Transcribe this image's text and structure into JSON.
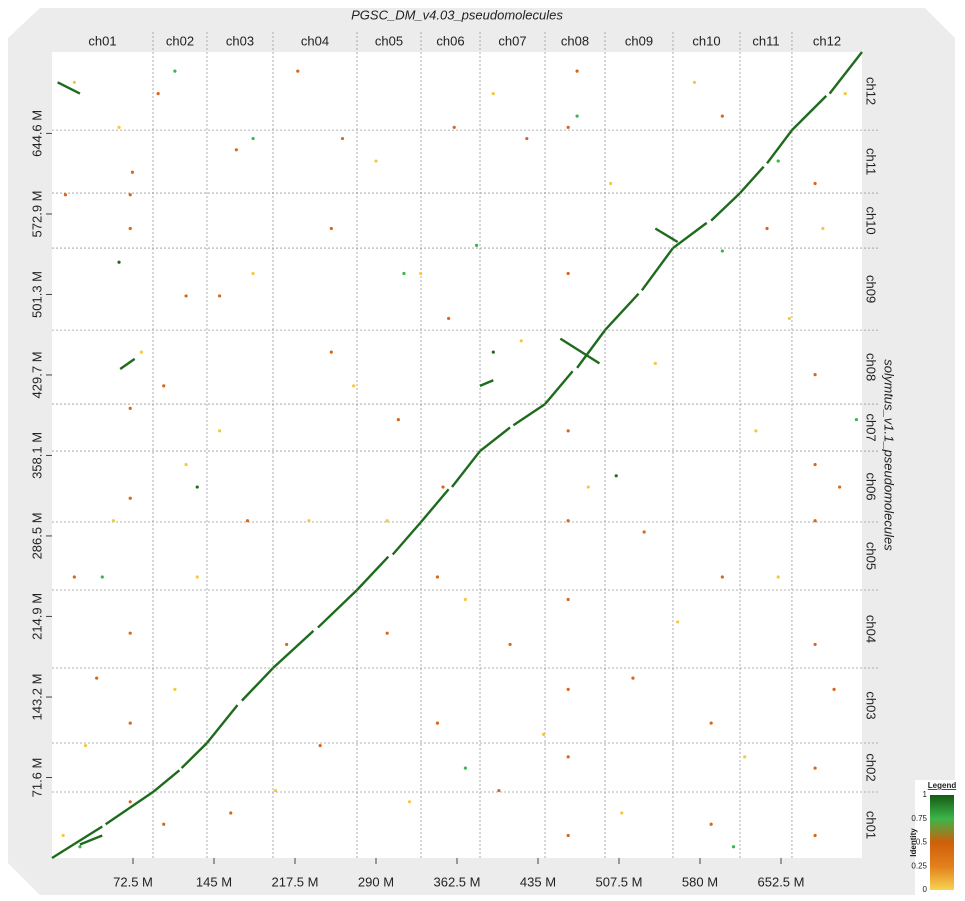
{
  "chart_data": {
    "type": "dotplot",
    "title": "PGSC_DM_v4.03_pseudomolecules",
    "y_title": "solymtus_v1.1_pseudomolecules",
    "xlim": [
      0,
      725
    ],
    "ylim": [
      0,
      717
    ],
    "xticks": [
      {
        "value": 72.5,
        "label": "72.5 M"
      },
      {
        "value": 145,
        "label": "145 M"
      },
      {
        "value": 217.5,
        "label": "217.5 M"
      },
      {
        "value": 290,
        "label": "290 M"
      },
      {
        "value": 362.5,
        "label": "362.5 M"
      },
      {
        "value": 435,
        "label": "435 M"
      },
      {
        "value": 507.5,
        "label": "507.5 M"
      },
      {
        "value": 580,
        "label": "580 M"
      },
      {
        "value": 652.5,
        "label": "652.5 M"
      }
    ],
    "yticks": [
      {
        "value": 71.6,
        "label": "71.6 M"
      },
      {
        "value": 143.2,
        "label": "143.2 M"
      },
      {
        "value": 214.9,
        "label": "214.9 M"
      },
      {
        "value": 286.5,
        "label": "286.5 M"
      },
      {
        "value": 358.1,
        "label": "358.1 M"
      },
      {
        "value": 429.7,
        "label": "429.7 M"
      },
      {
        "value": 501.3,
        "label": "501.3 M"
      },
      {
        "value": 572.9,
        "label": "572.9 M"
      },
      {
        "value": 644.6,
        "label": "644.6 M"
      }
    ],
    "x_chromosomes": [
      {
        "name": "ch01",
        "start": 0,
        "end": 90.4
      },
      {
        "name": "ch02",
        "start": 90.4,
        "end": 138.7
      },
      {
        "name": "ch03",
        "start": 138.7,
        "end": 197.8
      },
      {
        "name": "ch04",
        "start": 197.8,
        "end": 273
      },
      {
        "name": "ch05",
        "start": 273,
        "end": 330.3
      },
      {
        "name": "ch06",
        "start": 330.3,
        "end": 383.1
      },
      {
        "name": "ch07",
        "start": 383.1,
        "end": 441.3
      },
      {
        "name": "ch08",
        "start": 441.3,
        "end": 495
      },
      {
        "name": "ch09",
        "start": 495,
        "end": 555.8
      },
      {
        "name": "ch10",
        "start": 555.8,
        "end": 615.8
      },
      {
        "name": "ch11",
        "start": 615.8,
        "end": 662.3
      },
      {
        "name": "ch12",
        "start": 662.3,
        "end": 725
      }
    ],
    "y_chromosomes": [
      {
        "name": "ch01",
        "start": 0,
        "end": 58.7
      },
      {
        "name": "ch02",
        "start": 58.7,
        "end": 102.3
      },
      {
        "name": "ch03",
        "start": 102.3,
        "end": 169
      },
      {
        "name": "ch04",
        "start": 169,
        "end": 238.4
      },
      {
        "name": "ch05",
        "start": 238.4,
        "end": 298.9
      },
      {
        "name": "ch06",
        "start": 298.9,
        "end": 362
      },
      {
        "name": "ch07",
        "start": 362,
        "end": 403.8
      },
      {
        "name": "ch08",
        "start": 403.8,
        "end": 469.6
      },
      {
        "name": "ch09",
        "start": 469.6,
        "end": 542.6
      },
      {
        "name": "ch10",
        "start": 542.6,
        "end": 591.5
      },
      {
        "name": "ch11",
        "start": 591.5,
        "end": 647.5
      },
      {
        "name": "ch12",
        "start": 647.5,
        "end": 717
      }
    ],
    "segments": {
      "color": "#1e6b1e",
      "x1": [
        0,
        48,
        90.4,
        116,
        138.7,
        170,
        197.8,
        238,
        273,
        305,
        330.3,
        358,
        383.1,
        413,
        441.3,
        470,
        495,
        528,
        555.8,
        590,
        615.8,
        640,
        662.3,
        696,
        5,
        61,
        455,
        383,
        540,
        25
      ],
      "x2": [
        45,
        90.4,
        114,
        138.7,
        166,
        197.8,
        234,
        273,
        301,
        330.3,
        355,
        383.1,
        410,
        441.3,
        466,
        495,
        525,
        555.8,
        586,
        615.8,
        637,
        662.3,
        693,
        725,
        25,
        74,
        490,
        395,
        560,
        45
      ],
      "y1": [
        0,
        30,
        58.7,
        80,
        102.3,
        140,
        169,
        205,
        238.4,
        270,
        298.9,
        330,
        362,
        385,
        403.8,
        436,
        469.6,
        505,
        542.6,
        567,
        591.5,
        618,
        647.5,
        680,
        690,
        435,
        462,
        420,
        560,
        12
      ],
      "y2": [
        28,
        58.7,
        78,
        102.3,
        136,
        169,
        202,
        238.4,
        268,
        298.9,
        328,
        362,
        383,
        403.8,
        433,
        469.6,
        502,
        542.6,
        565,
        591.5,
        615,
        647.5,
        678,
        717,
        680,
        444,
        440,
        425,
        548,
        20
      ]
    },
    "series": [
      {
        "color": "#d9661a",
        "x": [
          70,
          70,
          70,
          70,
          70,
          70,
          70,
          72,
          12,
          20,
          40,
          100,
          100,
          120,
          160,
          165,
          175,
          210,
          240,
          250,
          260,
          300,
          310,
          345,
          345,
          350,
          355,
          360,
          400,
          410,
          425,
          462,
          462,
          462,
          462,
          462,
          462,
          462,
          462,
          470,
          520,
          530,
          590,
          590,
          600,
          600,
          640,
          683,
          683,
          683,
          683,
          683,
          683,
          683,
          700,
          705,
          250,
          150,
          220,
          95
        ],
        "y": [
          50,
          120,
          200,
          320,
          400,
          560,
          590,
          610,
          590,
          250,
          160,
          30,
          420,
          500,
          40,
          630,
          300,
          190,
          100,
          560,
          640,
          200,
          390,
          120,
          250,
          330,
          480,
          650,
          60,
          190,
          640,
          20,
          90,
          150,
          230,
          300,
          380,
          520,
          650,
          700,
          160,
          290,
          30,
          120,
          250,
          660,
          560,
          20,
          80,
          190,
          300,
          350,
          430,
          600,
          150,
          330,
          450,
          500,
          700,
          680
        ]
      },
      {
        "color": "#f5c842",
        "x": [
          10,
          30,
          55,
          80,
          110,
          130,
          150,
          180,
          200,
          230,
          270,
          290,
          320,
          330,
          370,
          395,
          420,
          440,
          480,
          500,
          510,
          540,
          560,
          575,
          620,
          630,
          650,
          660,
          690,
          710,
          20,
          60,
          120,
          300
        ],
        "y": [
          20,
          100,
          300,
          450,
          150,
          250,
          380,
          520,
          60,
          300,
          420,
          620,
          50,
          520,
          230,
          680,
          460,
          110,
          330,
          600,
          40,
          440,
          210,
          690,
          90,
          380,
          250,
          480,
          560,
          680,
          690,
          650,
          350,
          300
        ]
      },
      {
        "color": "#3cb54a",
        "x": [
          25,
          45,
          110,
          180,
          315,
          370,
          470,
          600,
          650,
          610,
          720,
          380
        ],
        "y": [
          10,
          250,
          700,
          640,
          520,
          80,
          660,
          540,
          620,
          10,
          390,
          545
        ]
      },
      {
        "color": "#1e6b1e",
        "x": [
          60,
          505,
          395,
          130
        ],
        "y": [
          530,
          340,
          450,
          330
        ]
      }
    ],
    "legend": {
      "title": "Legend",
      "label": "Identity",
      "ticks": [
        0,
        0.25,
        0.5,
        0.75,
        1
      ],
      "colors": [
        "#f7d351",
        "#e2801c",
        "#cf5f0a",
        "#3cb54a",
        "#145a14"
      ]
    }
  }
}
